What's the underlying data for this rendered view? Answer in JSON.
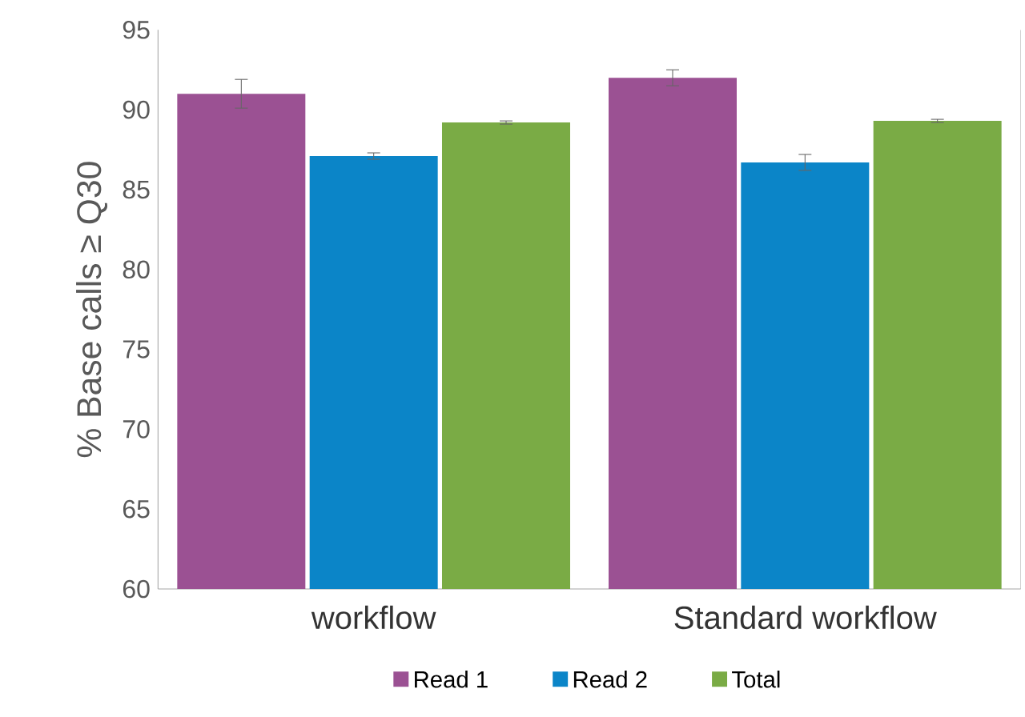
{
  "chart_data": {
    "type": "bar",
    "ylabel": "% Base calls ≥ Q30",
    "categories": [
      "workflow",
      "Standard workflow"
    ],
    "series": [
      {
        "name": "Read 1",
        "color": "#9b5193",
        "values": [
          91.0,
          92.0
        ],
        "errors": [
          0.9,
          0.5
        ]
      },
      {
        "name": "Read 2",
        "color": "#0b85c8",
        "values": [
          87.1,
          86.7
        ],
        "errors": [
          0.2,
          0.5
        ]
      },
      {
        "name": "Total",
        "color": "#7aab45",
        "values": [
          89.2,
          89.3
        ],
        "errors": [
          0.1,
          0.1
        ]
      }
    ],
    "ylim": [
      60,
      95
    ],
    "yticks": [
      60,
      65,
      70,
      75,
      80,
      85,
      90,
      95
    ],
    "grid": false,
    "legend": "bottom"
  }
}
